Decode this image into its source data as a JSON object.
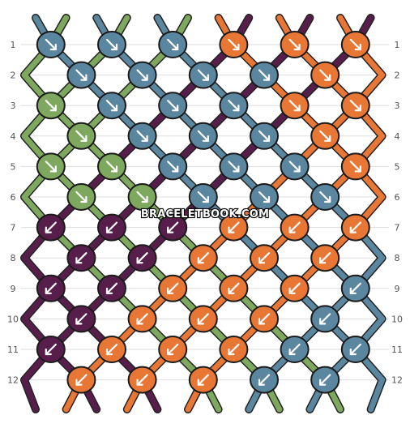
{
  "colors": {
    "A": "#5b86a0",
    "B": "#7da85d",
    "C": "#e87735",
    "D": "#571e4c"
  },
  "top_strings": [
    "A",
    "B",
    "A",
    "B",
    "A",
    "B",
    "C",
    "D",
    "C",
    "D",
    "C",
    "D"
  ],
  "bottom_strings": [
    "D",
    "C",
    "D",
    "C",
    "D",
    "C",
    "B",
    "A",
    "B",
    "A",
    "B",
    "A"
  ],
  "row_labels": [
    "1",
    "2",
    "3",
    "4",
    "5",
    "6",
    "7",
    "8",
    "9",
    "10",
    "11",
    "12"
  ],
  "watermark": "BRACELETBOOK.COM",
  "knots": [
    [
      {
        "c": "A",
        "d": "r"
      },
      {
        "c": "A",
        "d": "r"
      },
      {
        "c": "A",
        "d": "r"
      },
      {
        "c": "C",
        "d": "r"
      },
      {
        "c": "C",
        "d": "r"
      },
      {
        "c": "C",
        "d": "r"
      }
    ],
    [
      {
        "c": "A",
        "d": "r"
      },
      {
        "c": "A",
        "d": "r"
      },
      {
        "c": "A",
        "d": "r"
      },
      {
        "c": "A",
        "d": "r"
      },
      {
        "c": "C",
        "d": "r"
      }
    ],
    [
      {
        "c": "B",
        "d": "r"
      },
      {
        "c": "A",
        "d": "r"
      },
      {
        "c": "A",
        "d": "r"
      },
      {
        "c": "A",
        "d": "r"
      },
      {
        "c": "C",
        "d": "r"
      },
      {
        "c": "C",
        "d": "r"
      }
    ],
    [
      {
        "c": "B",
        "d": "r"
      },
      {
        "c": "A",
        "d": "r"
      },
      {
        "c": "A",
        "d": "r"
      },
      {
        "c": "A",
        "d": "r"
      },
      {
        "c": "C",
        "d": "r"
      }
    ],
    [
      {
        "c": "B",
        "d": "r"
      },
      {
        "c": "B",
        "d": "r"
      },
      {
        "c": "A",
        "d": "r"
      },
      {
        "c": "A",
        "d": "r"
      },
      {
        "c": "A",
        "d": "r"
      },
      {
        "c": "C",
        "d": "r"
      }
    ],
    [
      {
        "c": "B",
        "d": "r"
      },
      {
        "c": "B",
        "d": "r"
      },
      {
        "c": "A",
        "d": "r"
      },
      {
        "c": "A",
        "d": "r"
      },
      {
        "c": "A",
        "d": "r"
      }
    ],
    [
      {
        "c": "D",
        "d": "l"
      },
      {
        "c": "D",
        "d": "l"
      },
      {
        "c": "D",
        "d": "l"
      },
      {
        "c": "C",
        "d": "l"
      },
      {
        "c": "C",
        "d": "l"
      },
      {
        "c": "C",
        "d": "l"
      }
    ],
    [
      {
        "c": "D",
        "d": "l"
      },
      {
        "c": "D",
        "d": "l"
      },
      {
        "c": "C",
        "d": "l"
      },
      {
        "c": "C",
        "d": "l"
      },
      {
        "c": "C",
        "d": "l"
      }
    ],
    [
      {
        "c": "D",
        "d": "l"
      },
      {
        "c": "D",
        "d": "l"
      },
      {
        "c": "C",
        "d": "l"
      },
      {
        "c": "C",
        "d": "l"
      },
      {
        "c": "C",
        "d": "l"
      },
      {
        "c": "A",
        "d": "l"
      }
    ],
    [
      {
        "c": "D",
        "d": "l"
      },
      {
        "c": "C",
        "d": "l"
      },
      {
        "c": "C",
        "d": "l"
      },
      {
        "c": "C",
        "d": "l"
      },
      {
        "c": "A",
        "d": "l"
      }
    ],
    [
      {
        "c": "D",
        "d": "l"
      },
      {
        "c": "C",
        "d": "l"
      },
      {
        "c": "C",
        "d": "l"
      },
      {
        "c": "C",
        "d": "l"
      },
      {
        "c": "A",
        "d": "l"
      },
      {
        "c": "A",
        "d": "l"
      }
    ],
    [
      {
        "c": "C",
        "d": "l"
      },
      {
        "c": "C",
        "d": "l"
      },
      {
        "c": "C",
        "d": "l"
      },
      {
        "c": "A",
        "d": "l"
      },
      {
        "c": "A",
        "d": "l"
      }
    ]
  ]
}
